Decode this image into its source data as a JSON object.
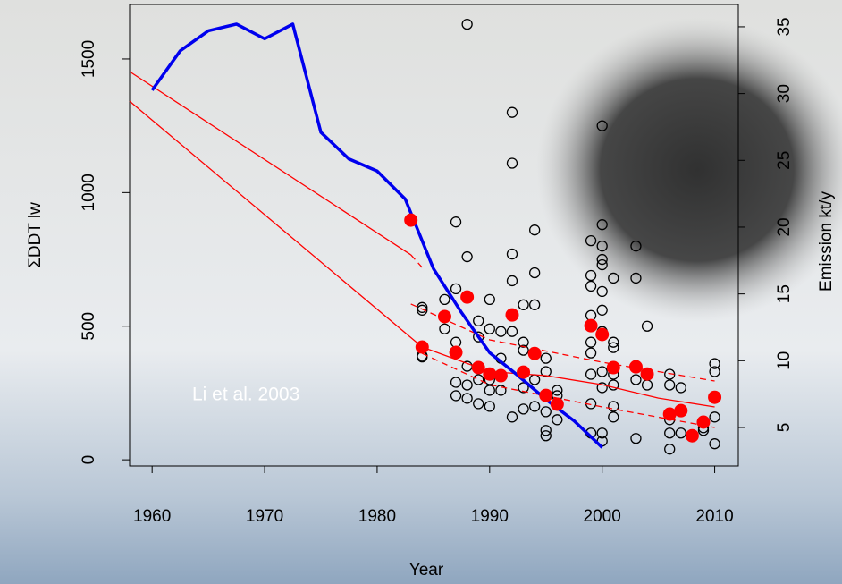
{
  "chart_data": {
    "type": "combo",
    "xlabel": "Year",
    "ylabel": "ΣDDT lw",
    "y2label": "Emission kt/y",
    "annotation": "Li et al. 2003",
    "xlim": [
      1958,
      2012.1
    ],
    "ylim": [
      -23,
      1704
    ],
    "y2lim": [
      2.12,
      36.67
    ],
    "xticks": [
      1960,
      1970,
      1980,
      1990,
      2000,
      2010
    ],
    "yticks": [
      0,
      500,
      1000,
      1500
    ],
    "y2ticks": [
      5,
      10,
      15,
      20,
      25,
      30,
      35
    ],
    "series": [
      {
        "type": "scatter",
        "marker": "open",
        "color": "#000000",
        "x": [
          1984,
          1984,
          1984,
          1984,
          1986,
          1986,
          1987,
          1987,
          1987,
          1987,
          1987,
          1988,
          1988,
          1988,
          1988,
          1988,
          1989,
          1989,
          1989,
          1989,
          1990,
          1990,
          1990,
          1990,
          1990,
          1991,
          1991,
          1991,
          1992,
          1992,
          1992,
          1992,
          1992,
          1992,
          1993,
          1993,
          1993,
          1993,
          1993,
          1994,
          1994,
          1994,
          1994,
          1994,
          1995,
          1995,
          1995,
          1995,
          1995,
          1996,
          1996,
          1996,
          1999,
          1999,
          1999,
          1999,
          1999,
          1999,
          1999,
          1999,
          1999,
          1999,
          2000,
          2000,
          2000,
          2000,
          2000,
          2000,
          2000,
          2000,
          2000,
          2000,
          2000,
          2000,
          2001,
          2001,
          2001,
          2001,
          2001,
          2001,
          2001,
          2003,
          2003,
          2003,
          2003,
          2004,
          2004,
          2006,
          2006,
          2006,
          2006,
          2006,
          2007,
          2007,
          2009,
          2009,
          2009,
          2010,
          2010,
          2010,
          2010
        ],
        "values": [
          570,
          560,
          390,
          385,
          600,
          490,
          890,
          640,
          440,
          290,
          240,
          1630,
          760,
          350,
          280,
          230,
          520,
          460,
          300,
          210,
          600,
          490,
          300,
          260,
          200,
          480,
          380,
          260,
          1300,
          1110,
          770,
          670,
          480,
          160,
          580,
          440,
          410,
          270,
          190,
          860,
          700,
          580,
          300,
          200,
          380,
          330,
          180,
          110,
          90,
          260,
          240,
          150,
          820,
          690,
          650,
          540,
          500,
          440,
          400,
          320,
          210,
          100,
          1250,
          880,
          800,
          750,
          730,
          630,
          560,
          480,
          330,
          270,
          100,
          70,
          680,
          440,
          420,
          320,
          280,
          200,
          160,
          800,
          680,
          300,
          80,
          500,
          280,
          320,
          280,
          150,
          100,
          40,
          270,
          100,
          120,
          140,
          110,
          360,
          330,
          160,
          60
        ]
      },
      {
        "type": "line",
        "color": "#ff0000",
        "width": 1.3,
        "x": [
          1958,
          1983
        ],
        "values": [
          1453,
          767
        ]
      },
      {
        "type": "line",
        "color": "#ff0000",
        "width": 1.3,
        "dash": true,
        "x": [
          1983,
          1984
        ],
        "values": [
          767,
          720
        ]
      },
      {
        "type": "line",
        "color": "#ff0000",
        "width": 1.3,
        "x": [
          1958,
          1984,
          1990,
          1995,
          2000,
          2005,
          2010
        ],
        "values": [
          1342,
          422,
          330,
          315,
          281,
          231,
          198
        ]
      },
      {
        "type": "line",
        "color": "#ff0000",
        "width": 1.3,
        "dash": true,
        "x": [
          1983,
          1990,
          2000,
          2010
        ],
        "values": [
          583,
          449,
          365,
          295
        ]
      },
      {
        "type": "line",
        "color": "#ff0000",
        "width": 1.3,
        "dash": true,
        "x": [
          1984,
          1990,
          2000,
          2010
        ],
        "values": [
          398,
          281,
          198,
          121
        ]
      },
      {
        "type": "line",
        "axis": "y2",
        "color": "#0000ee",
        "width": 3.5,
        "x": [
          1960,
          1962.5,
          1965,
          1967.5,
          1970,
          1972.5,
          1975,
          1977.5,
          1980,
          1982.5,
          1985,
          1987.5,
          1990,
          1992.5,
          1995,
          1997.5,
          2000
        ],
        "values": [
          30.25,
          33.2,
          34.7,
          35.2,
          34.1,
          35.2,
          27.1,
          25.1,
          24.2,
          22.1,
          16.9,
          13.6,
          10.6,
          8.9,
          7.1,
          5.5,
          3.5
        ]
      },
      {
        "type": "scatter",
        "marker": "filled",
        "color": "#ff0000",
        "x": [
          1983,
          1984,
          1986,
          1987,
          1988,
          1989,
          1990,
          1991,
          1992,
          1993,
          1994,
          1995,
          1996,
          1999,
          2000,
          2001,
          2003,
          2004,
          2006,
          2007,
          2008,
          2009,
          2010
        ],
        "values": [
          897,
          422,
          536,
          402,
          609,
          345,
          321,
          315,
          542,
          328,
          398,
          241,
          208,
          502,
          469,
          345,
          348,
          321,
          171,
          184,
          90,
          141,
          234
        ]
      }
    ]
  }
}
